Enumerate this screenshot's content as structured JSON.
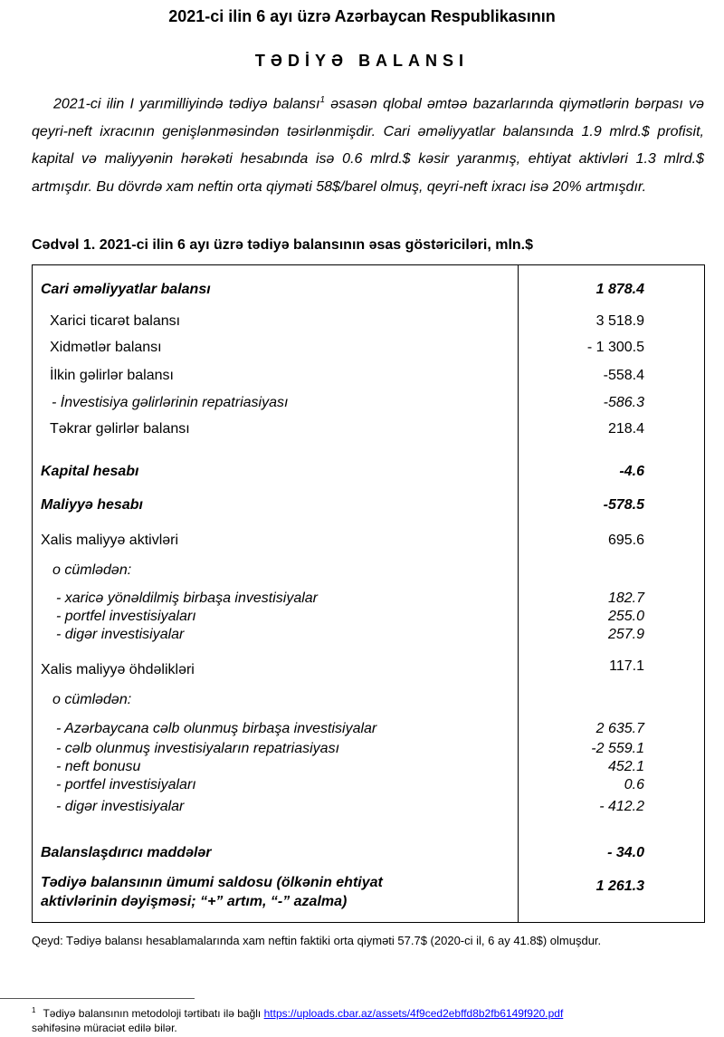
{
  "title": "2021-ci ilin 6 ayı üzrə Azərbaycan Respublikasının",
  "subtitle": "TƏDİYƏ BALANSI",
  "intro": {
    "before_sup": "2021-ci ilin I yarımilliyində tədiyə balansı",
    "sup": "1",
    "after_sup": " əsasən qlobal əmtəə bazarlarında qiymətlərin bərpası və qeyri-neft ixracının genişlənməsindən təsirlənmişdir. Cari əməliyyatlar balansında 1.9 mlrd.$ profisit, kapital və maliyyənin hərəkəti hesabında isə 0.6 mlrd.$ kəsir yaranmış, ehtiyat aktivləri 1.3 mlrd.$ artmışdır. Bu dövrdə xam neftin orta qiyməti 58$/barel olmuş, qeyri-neft ixracı isə 20% artmışdır."
  },
  "table": {
    "caption": "Cədvəl 1. 2021-ci ilin 6 ayı üzrə tədiyə balansının əsas göstəriciləri, mln.$",
    "rows": [
      {
        "label": "Cari əməliyyatlar balansı",
        "value": "1 878.4",
        "style": "b"
      },
      {
        "label": "Xarici ticarət balansı",
        "value": "3 518.9",
        "style": ""
      },
      {
        "label": "Xidmətlər balansı",
        "value": "- 1 300.5",
        "style": ""
      },
      {
        "label": "İlkin gəlirlər balansı",
        "value": "-558.4",
        "style": ""
      },
      {
        "label": " - İnvestisiya gəlirlərinin repatriasiyası",
        "value": "-586.3",
        "style": "i"
      },
      {
        "label": "Təkrar gəlirlər balansı",
        "value": "218.4",
        "style": ""
      },
      {
        "label": "Kapital hesabı",
        "value": "-4.6",
        "style": "b"
      },
      {
        "label": "Maliyyə hesabı",
        "value": "-578.5",
        "style": "b"
      },
      {
        "label": "Xalis maliyyə aktivləri",
        "value": "695.6",
        "style": ""
      },
      {
        "label": "o cümlədən:",
        "value": "",
        "style": "i"
      },
      {
        "label": "- xaricə yönəldilmiş birbaşa investisiyalar",
        "value": "182.7",
        "style": "i"
      },
      {
        "label": "- portfel investisiyaları",
        "value": "255.0",
        "style": "i"
      },
      {
        "label": "- digər investisiyalar",
        "value": "257.9",
        "style": "i"
      },
      {
        "label": "Xalis maliyyə öhdəlikləri",
        "value": "117.1",
        "style": ""
      },
      {
        "label": "o cümlədən:",
        "value": "",
        "style": "i"
      },
      {
        "label": "- Azərbaycana cəlb olunmuş birbaşa investisiyalar",
        "value": "2 635.7",
        "style": "i"
      },
      {
        "label": "- cəlb olunmuş investisiyaların repatriasiyası",
        "value": "-2 559.1",
        "style": "i"
      },
      {
        "label": "- neft bonusu",
        "value": "452.1",
        "style": "i"
      },
      {
        "label": "- portfel investisiyaları",
        "value": "0.6",
        "style": "i"
      },
      {
        "label": "- digər investisiyalar",
        "value": "- 412.2",
        "style": "i"
      },
      {
        "label": "Balanslaşdırıcı maddələr",
        "value": "- 34.0",
        "style": "b"
      },
      {
        "label": "Tədiyə balansının ümumi saldosu (ölkənin ehtiyat",
        "label2": "aktivlərinin dəyişməsi;   “+” artım,  “-” azalma)",
        "value": "1 261.3",
        "style": "b"
      }
    ]
  },
  "note": "Qeyd: Tədiyə balansı hesablamalarında xam neftin faktiki orta qiyməti 57.7$ (2020-ci il, 6 ay 41.8$) olmuşdur.",
  "footnote": {
    "mark": "1",
    "text": "Tədiyə balansının metodoloji tərtibatı ilə bağlı ",
    "link": "https://uploads.cbar.az/assets/4f9ced2ebffd8b2fb6149f920.pdf",
    "text2": "səhifəsinə müraciət edilə bilər."
  }
}
